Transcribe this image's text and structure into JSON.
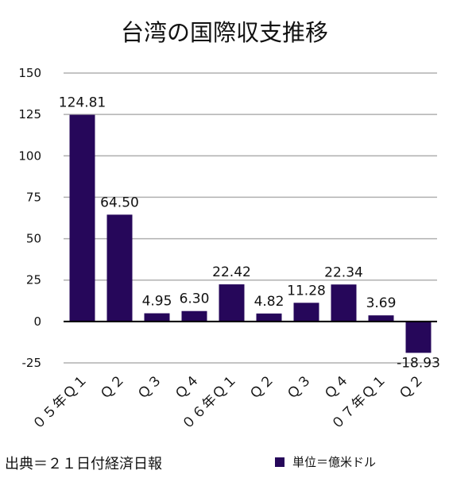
{
  "chart_data": {
    "type": "bar",
    "title": "台湾の国際収支推移",
    "categories": [
      "０５年Ｑ１",
      "Ｑ２",
      "Ｑ３",
      "Ｑ４",
      "０６年Ｑ１",
      "Ｑ２",
      "Ｑ３",
      "Ｑ４",
      "０７年Ｑ１",
      "Ｑ２"
    ],
    "series": [
      {
        "name": "単位＝億米ドル",
        "values": [
          124.81,
          64.5,
          4.95,
          6.3,
          22.42,
          4.82,
          11.28,
          22.34,
          3.69,
          -18.93
        ],
        "labels": [
          "124.81",
          "64.50",
          "4.95",
          "6.30",
          "22.42",
          "4.82",
          "11.28",
          "22.34",
          "3.69",
          "-18.93"
        ]
      }
    ],
    "yticks": [
      "150",
      "125",
      "100",
      "75",
      "50",
      "25",
      "0",
      "-25"
    ],
    "ylim": [
      -25,
      150
    ],
    "grid": true,
    "legend_position": "bottom-right",
    "bar_color": "#26075a"
  },
  "footer": {
    "source": "出典＝２１日付経済日報"
  }
}
